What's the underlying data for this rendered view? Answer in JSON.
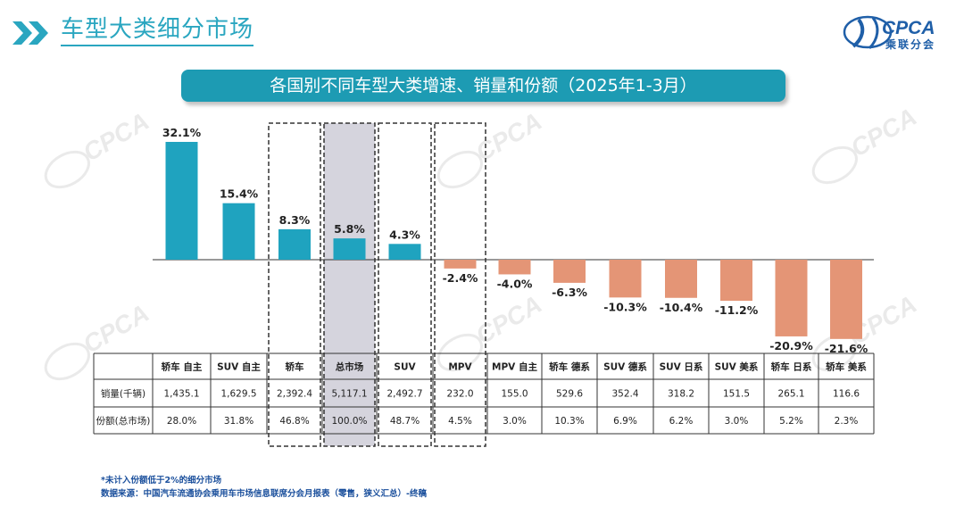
{
  "header": {
    "title": "车型大类细分市场",
    "logo_text": "CPCA",
    "logo_subtitle": "乘联分会"
  },
  "banner": {
    "title": "各国别不同车型大类增速、销量和份额（2025年1-3月）"
  },
  "watermark": {
    "text": "CPCA",
    "subtext": "乘联分会"
  },
  "colors": {
    "accent": "#2aa6c0",
    "positive": "#1fa3bf",
    "negative": "#e49576",
    "highlight": "#d5d4dd",
    "banner": "#1d9bb3"
  },
  "chart_data": {
    "type": "bar",
    "title": "各国别不同车型大类增速、销量和份额（2025年1-3月）",
    "categories": [
      "轿车 自主",
      "SUV 自主",
      "轿车",
      "总市场",
      "SUV",
      "MPV",
      "MPV 自主",
      "轿车 德系",
      "SUV 德系",
      "SUV 日系",
      "SUV 美系",
      "轿车 日系",
      "轿车 美系"
    ],
    "growth": [
      32.1,
      15.4,
      8.3,
      5.8,
      4.3,
      -2.4,
      -4.0,
      -6.3,
      -10.3,
      -10.4,
      -11.2,
      -20.9,
      -21.6
    ],
    "growth_labels": [
      "32.1%",
      "15.4%",
      "8.3%",
      "5.8%",
      "4.3%",
      "-2.4%",
      "-4.0%",
      "-6.3%",
      "-10.3%",
      "-10.4%",
      "-11.2%",
      "-20.9%",
      "-21.6%"
    ],
    "ylim": [
      -22,
      33
    ],
    "boxed_categories": [
      "轿车",
      "总市场",
      "SUV",
      "MPV"
    ],
    "highlighted_category": "总市场",
    "table": {
      "rows": [
        {
          "label": "销量(千辆)",
          "values": [
            "1,435.1",
            "1,629.5",
            "2,392.4",
            "5,117.1",
            "2,492.7",
            "232.0",
            "155.0",
            "529.6",
            "352.4",
            "318.2",
            "151.5",
            "265.1",
            "116.6"
          ]
        },
        {
          "label": "份额(总市场)",
          "values": [
            "28.0%",
            "31.8%",
            "46.8%",
            "100.0%",
            "48.7%",
            "4.5%",
            "3.0%",
            "10.3%",
            "6.9%",
            "6.2%",
            "3.0%",
            "5.2%",
            "2.3%"
          ]
        }
      ]
    }
  },
  "footnotes": {
    "note": "*未计入份额低于2%的细分市场",
    "source": "数据来源：中国汽车流通协会乘用车市场信息联席分会月报表（零售，狭义汇总）-终稿"
  }
}
